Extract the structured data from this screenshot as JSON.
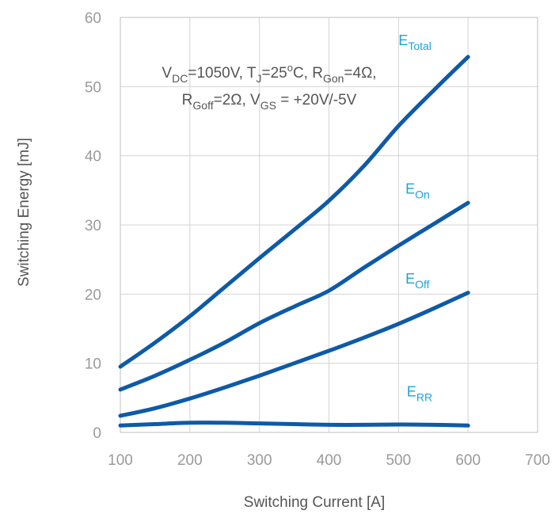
{
  "chart_data": {
    "type": "line",
    "xlabel": "Switching Current [A]",
    "ylabel": "Switching Energy [mJ]",
    "xlim": [
      100,
      700
    ],
    "ylim": [
      0,
      60
    ],
    "xticks": [
      100,
      200,
      300,
      400,
      500,
      600,
      700
    ],
    "yticks": [
      0,
      10,
      20,
      30,
      40,
      50,
      60
    ],
    "grid": true,
    "annotation": {
      "line1": [
        {
          "text": "V",
          "sub": false
        },
        {
          "text": "DC",
          "sub": true
        },
        {
          "text": "=1050V, T",
          "sub": false
        },
        {
          "text": "J",
          "sub": true
        },
        {
          "text": "=25",
          "sub": false
        },
        {
          "text": "o",
          "sup": true
        },
        {
          "text": "C, R",
          "sub": false
        },
        {
          "text": "Gon",
          "sub": true
        },
        {
          "text": "=4Ω,",
          "sub": false
        }
      ],
      "line2": [
        {
          "text": "R",
          "sub": false
        },
        {
          "text": "Goff",
          "sub": true
        },
        {
          "text": "=2Ω, V",
          "sub": false
        },
        {
          "text": "GS",
          "sub": true
        },
        {
          "text": " = +20V/-5V",
          "sub": false
        }
      ]
    },
    "colors": {
      "line": "#0e5aa7",
      "label": "#1ba3d8"
    },
    "series": [
      {
        "name": "E",
        "sub": "Total",
        "x": [
          100,
          150,
          200,
          250,
          300,
          350,
          400,
          450,
          500,
          550,
          600
        ],
        "y": [
          9.5,
          13,
          16.8,
          21,
          25.2,
          29.3,
          33.5,
          38.5,
          44.3,
          49.4,
          54.3
        ],
        "label_at": [
          500,
          56
        ]
      },
      {
        "name": "E",
        "sub": "On",
        "x": [
          100,
          150,
          200,
          250,
          300,
          350,
          400,
          450,
          500,
          550,
          600
        ],
        "y": [
          6.2,
          8.2,
          10.5,
          13,
          15.8,
          18.2,
          20.5,
          23.8,
          27,
          30.1,
          33.2
        ],
        "label_at": [
          510,
          34.5
        ]
      },
      {
        "name": "E",
        "sub": "Off",
        "x": [
          100,
          150,
          200,
          250,
          300,
          350,
          400,
          450,
          500,
          550,
          600
        ],
        "y": [
          2.4,
          3.5,
          4.9,
          6.5,
          8.2,
          10,
          11.8,
          13.7,
          15.7,
          17.9,
          20.2
        ],
        "label_at": [
          510,
          21.5
        ]
      },
      {
        "name": "E",
        "sub": "RR",
        "x": [
          100,
          150,
          200,
          250,
          300,
          350,
          400,
          450,
          500,
          550,
          600
        ],
        "y": [
          1.0,
          1.2,
          1.4,
          1.4,
          1.3,
          1.2,
          1.1,
          1.1,
          1.15,
          1.1,
          1.0
        ],
        "label_at": [
          512,
          5.2
        ]
      }
    ]
  }
}
